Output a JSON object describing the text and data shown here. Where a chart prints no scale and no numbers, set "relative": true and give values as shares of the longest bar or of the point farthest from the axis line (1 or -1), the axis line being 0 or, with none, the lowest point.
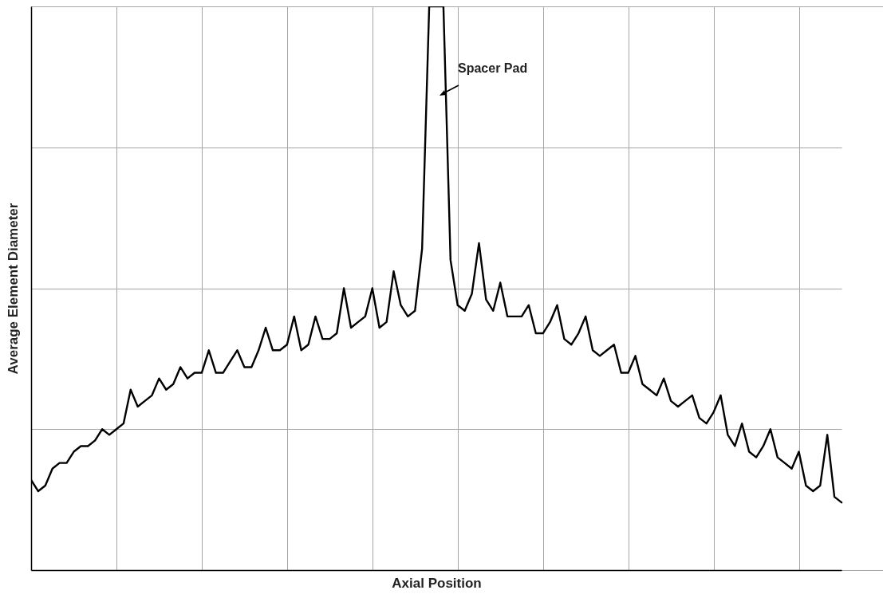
{
  "chart_data": {
    "type": "line",
    "relative": true,
    "xlabel": "Axial Position",
    "ylabel": "Average Element Diameter",
    "annotations": [
      "Spacer Pad"
    ],
    "grid": true,
    "tick_labels": false,
    "line_style": "solid",
    "categories": [
      null,
      null,
      null,
      null,
      null,
      null,
      null,
      null,
      null,
      null,
      null,
      null,
      null,
      null,
      null,
      null,
      null,
      null,
      null,
      null,
      null,
      null,
      null,
      null,
      null,
      null,
      null,
      null,
      null,
      null,
      null,
      null,
      null,
      null,
      null,
      null,
      null,
      null,
      null,
      null,
      null,
      null,
      null,
      null,
      null,
      null,
      null,
      null,
      null,
      null,
      null,
      null,
      null,
      null,
      null,
      null,
      null,
      null,
      null,
      null,
      null,
      null,
      null,
      null,
      null,
      null,
      null,
      null,
      null,
      null,
      null,
      null,
      null,
      null,
      null,
      null,
      null,
      null,
      null,
      null,
      null,
      null,
      null,
      null,
      null,
      null,
      null,
      null,
      null,
      null,
      null,
      null,
      null,
      null,
      null,
      null,
      null,
      null,
      null,
      null,
      null,
      null,
      null,
      null,
      null,
      null,
      null,
      null,
      null,
      null,
      null,
      null,
      null,
      null,
      null
    ],
    "series": [
      {
        "color": "#000000",
        "values": [
          0.16,
          0.14,
          0.15,
          0.18,
          0.19,
          0.19,
          0.21,
          0.22,
          0.22,
          0.23,
          0.25,
          0.24,
          0.25,
          0.26,
          0.32,
          0.29,
          0.3,
          0.31,
          0.34,
          0.32,
          0.33,
          0.36,
          0.34,
          0.35,
          0.35,
          0.39,
          0.35,
          0.35,
          0.37,
          0.39,
          0.36,
          0.36,
          0.39,
          0.43,
          0.39,
          0.39,
          0.4,
          0.45,
          0.39,
          0.4,
          0.45,
          0.41,
          0.41,
          0.42,
          0.5,
          0.43,
          0.44,
          0.45,
          0.5,
          0.43,
          0.44,
          0.53,
          0.47,
          0.45,
          0.46,
          0.57,
          1,
          1,
          1,
          0.55,
          0.47,
          0.46,
          0.49,
          0.58,
          0.48,
          0.46,
          0.51,
          0.45,
          0.45,
          0.45,
          0.47,
          0.42,
          0.42,
          0.44,
          0.47,
          0.41,
          0.4,
          0.42,
          0.45,
          0.39,
          0.38,
          0.39,
          0.4,
          0.35,
          0.35,
          0.38,
          0.33,
          0.32,
          0.31,
          0.34,
          0.3,
          0.29,
          0.3,
          0.31,
          0.27,
          0.26,
          0.28,
          0.31,
          0.24,
          0.22,
          0.26,
          0.21,
          0.2,
          0.22,
          0.25,
          0.2,
          0.19,
          0.18,
          0.21,
          0.15,
          0.14,
          0.15,
          0.24,
          0.13,
          0.12
        ]
      }
    ]
  }
}
